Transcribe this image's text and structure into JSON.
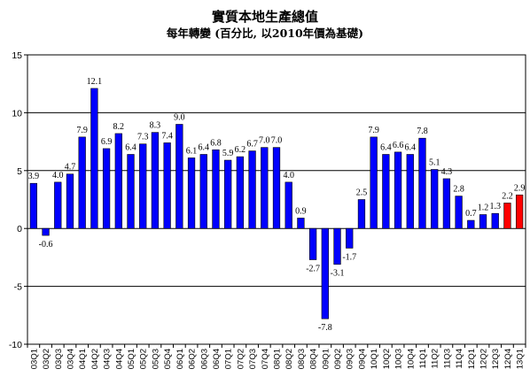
{
  "chart_data": {
    "type": "bar",
    "title": "實質本地生產總值",
    "subtitle": "每年轉變 (百分比, 以2010年價為基礎)",
    "xlabel": "",
    "ylabel": "",
    "ylim": [
      -10,
      15
    ],
    "yticks": [
      15,
      10,
      5,
      0,
      -5,
      -10
    ],
    "grid": true,
    "colors": {
      "default": "#0000ff",
      "highlight": "#ff0000",
      "grid": "#000000"
    },
    "categories": [
      "03Q1",
      "03Q2",
      "03Q3",
      "03Q4",
      "04Q1",
      "04Q2",
      "04Q3",
      "04Q4",
      "05Q1",
      "05Q2",
      "05Q3",
      "05Q4",
      "06Q1",
      "06Q2",
      "06Q3",
      "06Q4",
      "07Q1",
      "07Q2",
      "07Q3",
      "07Q4",
      "08Q1",
      "08Q2",
      "08Q3",
      "08Q4",
      "09Q1",
      "09Q2",
      "09Q3",
      "09Q4",
      "10Q1",
      "10Q2",
      "10Q3",
      "10Q4",
      "11Q1",
      "11Q2",
      "11Q3",
      "11Q4",
      "12Q1",
      "12Q2",
      "12Q3",
      "12Q4",
      "13Q1"
    ],
    "values": [
      3.9,
      -0.6,
      4.0,
      4.7,
      7.9,
      12.1,
      6.9,
      8.2,
      6.4,
      7.3,
      8.3,
      7.4,
      9.0,
      6.1,
      6.4,
      6.8,
      5.9,
      6.2,
      6.7,
      7.0,
      7.0,
      4.0,
      0.9,
      -2.7,
      -7.8,
      -3.1,
      -1.7,
      2.5,
      7.9,
      6.4,
      6.6,
      6.4,
      7.8,
      5.1,
      4.3,
      2.8,
      0.7,
      1.2,
      1.3,
      2.2,
      2.9
    ],
    "labels": [
      "3.9",
      "-0.6",
      "4.0",
      "4.7",
      "7.9",
      "12.1",
      "6.9",
      "8.2",
      "6.4",
      "7.3",
      "8.3",
      "7.4",
      "9.0",
      "6.1",
      "6.4",
      "6.8",
      "5.9",
      "6.2",
      "6.7",
      "7.0",
      "7.0",
      "4.0",
      "0.9",
      "-2.7",
      "-7.8",
      "-3.1",
      "-1.7",
      "2.5",
      "7.9",
      "6.4",
      "6.6",
      "6.4",
      "7.8",
      "5.1",
      "4.3",
      "2.8",
      "0.7",
      "1.2",
      "1.3",
      "2.2",
      "2.9"
    ],
    "highlighted": [
      "12Q4",
      "13Q1"
    ]
  }
}
